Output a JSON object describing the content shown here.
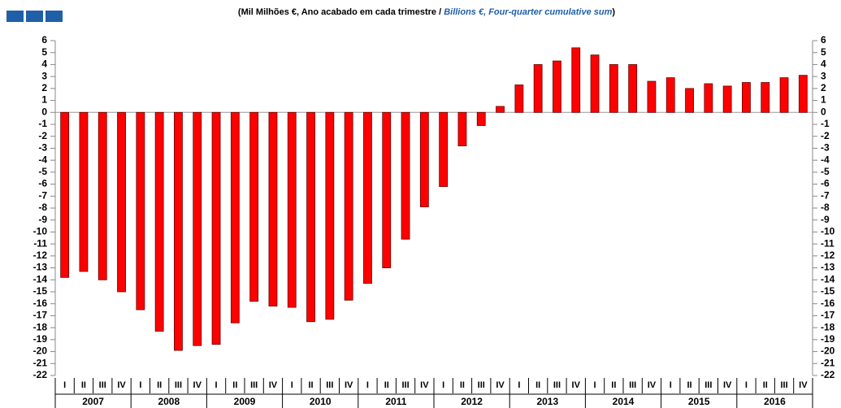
{
  "chart_data": {
    "type": "bar",
    "title": [
      "(Mil Milhões €, Ano acabado em cada trimestre / ",
      "Billions €, Four-quarter cumulative sum",
      ")"
    ],
    "categories": [
      "I",
      "II",
      "III",
      "IV",
      "I",
      "II",
      "III",
      "IV",
      "I",
      "II",
      "III",
      "IV",
      "I",
      "II",
      "III",
      "IV",
      "I",
      "II",
      "III",
      "IV",
      "I",
      "II",
      "III",
      "IV",
      "I",
      "II",
      "III",
      "IV",
      "I",
      "II",
      "III",
      "IV",
      "I",
      "II",
      "III",
      "IV",
      "I",
      "II",
      "III",
      "IV"
    ],
    "years": [
      "2007",
      "2008",
      "2009",
      "2010",
      "2011",
      "2012",
      "2013",
      "2014",
      "2015",
      "2016"
    ],
    "values": [
      -13.8,
      -13.3,
      -14.0,
      -15.0,
      -16.5,
      -18.3,
      -19.9,
      -19.5,
      -19.4,
      -17.6,
      -15.8,
      -16.2,
      -16.3,
      -17.5,
      -17.3,
      -15.7,
      -14.3,
      -13.0,
      -10.6,
      -7.9,
      -6.2,
      -2.8,
      -1.1,
      0.5,
      2.3,
      4.0,
      4.3,
      5.4,
      4.8,
      4.0,
      4.0,
      2.6,
      2.9,
      2.0,
      2.4,
      2.2,
      2.5,
      2.5,
      2.9,
      3.1
    ],
    "color": "#ff0000",
    "ylim": [
      -22,
      6
    ],
    "yticks": [
      -22,
      -21,
      -20,
      -19,
      -18,
      -17,
      -16,
      -15,
      -14,
      -13,
      -12,
      -11,
      -10,
      -9,
      -8,
      -7,
      -6,
      -5,
      -4,
      -3,
      -2,
      -1,
      0,
      1,
      2,
      3,
      4,
      5,
      6
    ]
  }
}
